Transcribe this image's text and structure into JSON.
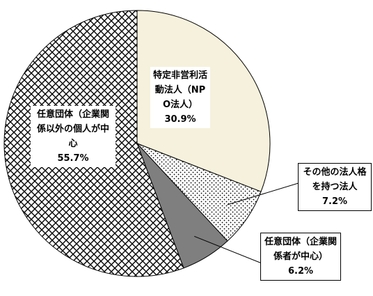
{
  "chart_data": {
    "type": "pie",
    "categories": [
      "特定非営利活動法人（NPO法人）",
      "その他の法人格を持つ法人",
      "任意団体（企業関係者が中心）",
      "任意団体（企業関係以外の個人が中心"
    ],
    "values": [
      30.9,
      7.2,
      6.2,
      55.7
    ],
    "value_labels": [
      "30.9%",
      "7.2%",
      "6.2%",
      "55.7%"
    ],
    "colors": [
      "#f6f1dc",
      "dots",
      "#7f7f7f",
      "crosshatch"
    ]
  }
}
